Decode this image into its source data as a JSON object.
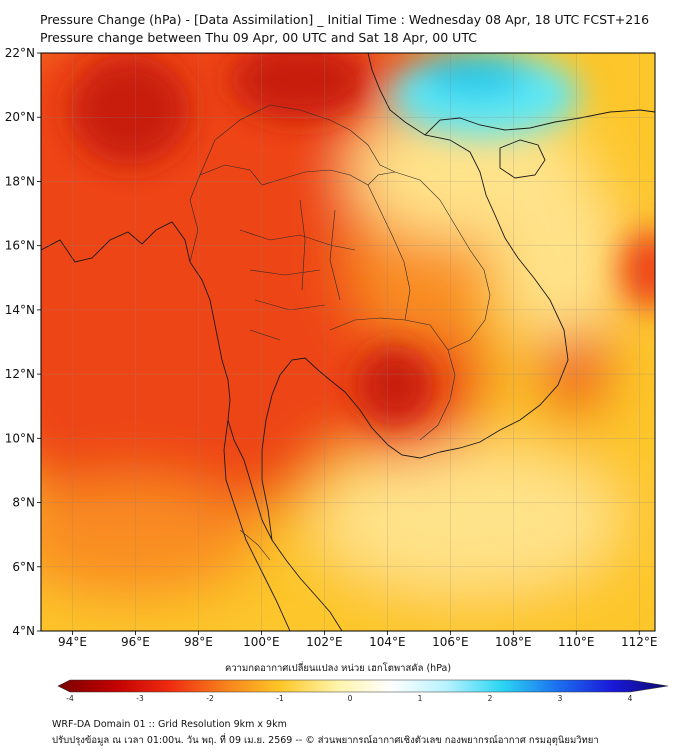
{
  "header": {
    "title_line1": "Pressure Change (hPa) - [Data Assimilation] _ Initial Time : Wednesday 08 Apr, 18 UTC FCST+216",
    "title_line2": "Pressure change between Thu 09 Apr, 00 UTC and Sat 18 Apr, 00 UTC"
  },
  "map": {
    "lon_range": [
      93,
      112.5
    ],
    "lat_range": [
      4,
      22
    ],
    "lon_ticks": [
      {
        "value": 94,
        "label": "94°E"
      },
      {
        "value": 96,
        "label": "96°E"
      },
      {
        "value": 98,
        "label": "98°E"
      },
      {
        "value": 100,
        "label": "100°E"
      },
      {
        "value": 102,
        "label": "102°E"
      },
      {
        "value": 104,
        "label": "104°E"
      },
      {
        "value": 106,
        "label": "106°E"
      },
      {
        "value": 108,
        "label": "108°E"
      },
      {
        "value": 110,
        "label": "110°E"
      },
      {
        "value": 112,
        "label": "112°E"
      }
    ],
    "lat_ticks": [
      {
        "value": 4,
        "label": "4°N"
      },
      {
        "value": 6,
        "label": "6°N"
      },
      {
        "value": 8,
        "label": "8°N"
      },
      {
        "value": 10,
        "label": "10°N"
      },
      {
        "value": 12,
        "label": "12°N"
      },
      {
        "value": 14,
        "label": "14°N"
      },
      {
        "value": 16,
        "label": "16°N"
      },
      {
        "value": 18,
        "label": "18°N"
      },
      {
        "value": 20,
        "label": "20°N"
      },
      {
        "value": 22,
        "label": "22°N"
      }
    ],
    "gridlines": true,
    "colors": {
      "strong_fall": "#c81e0f",
      "fall": "#ee4415",
      "moderate_fall": "#f98d22",
      "slight_fall": "#fdc62a",
      "near_zero": "#ffe38a",
      "rise": "#5ee8f5",
      "strong_rise": "#20c8ea"
    }
  },
  "colorbar": {
    "title": "ความกดอากาศเปลี่ยนแปลง หน่วย เฮกโตพาสคัล (hPa)",
    "range": [
      -4,
      4
    ],
    "ticks": [
      {
        "value": -4,
        "label": "-4"
      },
      {
        "value": -3,
        "label": "-3"
      },
      {
        "value": -2,
        "label": "-2"
      },
      {
        "value": -1,
        "label": "-1"
      },
      {
        "value": 0,
        "label": "0"
      },
      {
        "value": 1,
        "label": "1"
      },
      {
        "value": 2,
        "label": "2"
      },
      {
        "value": 3,
        "label": "3"
      },
      {
        "value": 4,
        "label": "4"
      }
    ],
    "stops": [
      "#7a0000",
      "#c00000",
      "#ef2a10",
      "#f7801c",
      "#fdc626",
      "#fff3a6",
      "#ffffff",
      "#b8f2ff",
      "#2cd6f2",
      "#1c70f0",
      "#1a18d8",
      "#0a0a70"
    ]
  },
  "footer": {
    "line1": "WRF-DA Domain 01 :: Grid Resolution 9km x 9km",
    "line2": "ปรับปรุงข้อมูล ณ เวลา 01:00น. วัน พฤ. ที่ 09 เม.ย. 2569 -- © ส่วนพยากรณ์อากาศเชิงตัวเลข กองพยากรณ์อากาศ กรมอุตุนิยมวิทยา"
  }
}
